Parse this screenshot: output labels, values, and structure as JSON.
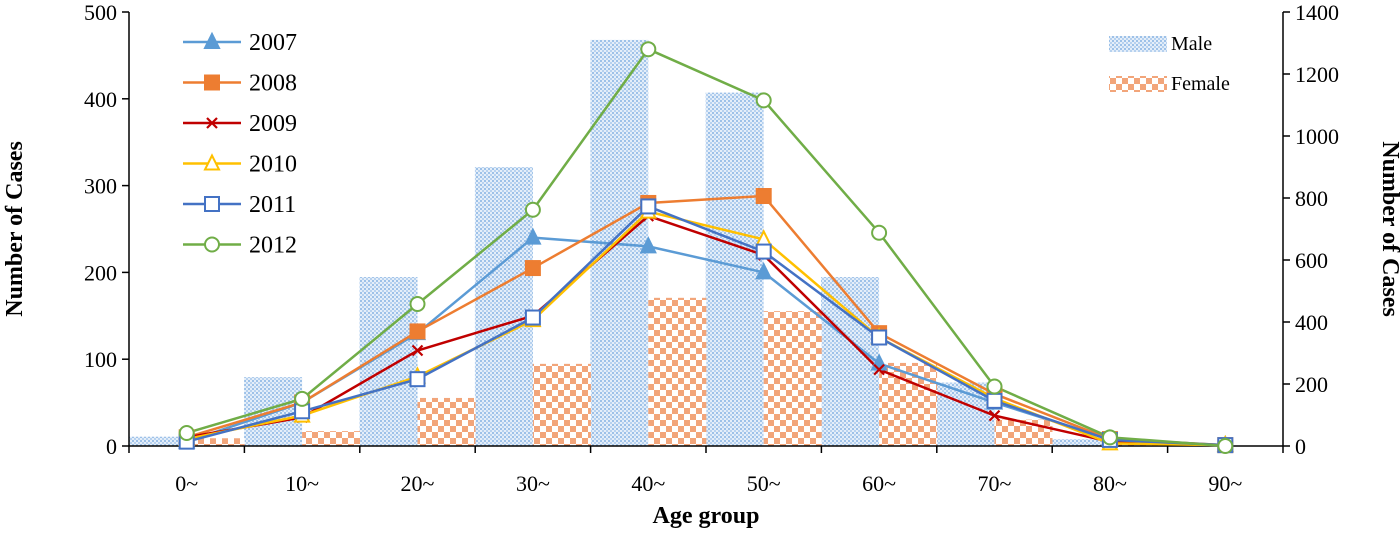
{
  "chart_data": {
    "type": "bar",
    "title": "",
    "xlabel": "Age group",
    "ylabel": "Number of Cases",
    "y2label": "Number of Cases",
    "categories": [
      "0~",
      "10~",
      "20~",
      "30~",
      "40~",
      "50~",
      "60~",
      "70~",
      "80~",
      "90~"
    ],
    "ylim": [
      0,
      500
    ],
    "yticks": [
      0,
      100,
      200,
      300,
      400,
      500
    ],
    "y2lim": [
      0,
      1400
    ],
    "y2ticks": [
      0,
      200,
      400,
      600,
      800,
      1000,
      1200,
      1400
    ],
    "bar_series": [
      {
        "name": "Male",
        "axis": "right",
        "color": "#bcd5ee",
        "pattern": "dots",
        "values": [
          30,
          222,
          545,
          900,
          1310,
          1140,
          545,
          205,
          22,
          2
        ]
      },
      {
        "name": "Female",
        "axis": "right",
        "color": "#f0a87a",
        "pattern": "checker",
        "values": [
          25,
          48,
          155,
          265,
          478,
          435,
          268,
          85,
          15,
          1
        ]
      }
    ],
    "series": [
      {
        "name": "2007",
        "axis": "left",
        "color": "#5b9bd5",
        "marker": "triangle-filled",
        "values": [
          5,
          50,
          130,
          240,
          230,
          200,
          95,
          50,
          8,
          1
        ]
      },
      {
        "name": "2008",
        "axis": "left",
        "color": "#ed7d31",
        "marker": "square-filled",
        "values": [
          10,
          50,
          132,
          205,
          280,
          288,
          130,
          60,
          8,
          1
        ]
      },
      {
        "name": "2009",
        "axis": "left",
        "color": "#c00000",
        "marker": "x",
        "values": [
          10,
          33,
          110,
          150,
          265,
          220,
          88,
          35,
          5,
          1
        ]
      },
      {
        "name": "2010",
        "axis": "left",
        "color": "#ffc000",
        "marker": "triangle-open",
        "values": [
          8,
          35,
          80,
          145,
          270,
          238,
          125,
          55,
          3,
          1
        ]
      },
      {
        "name": "2011",
        "axis": "left",
        "color": "#4472c4",
        "marker": "square-open",
        "values": [
          5,
          40,
          77,
          148,
          276,
          224,
          125,
          52,
          7,
          1
        ]
      },
      {
        "name": "2012",
        "axis": "right",
        "color": "#70ad47",
        "marker": "circle-open",
        "values": [
          42,
          152,
          458,
          762,
          1280,
          1115,
          688,
          192,
          28,
          0
        ]
      }
    ],
    "legend_lines_position": "top-left",
    "legend_bars_position": "top-right"
  }
}
